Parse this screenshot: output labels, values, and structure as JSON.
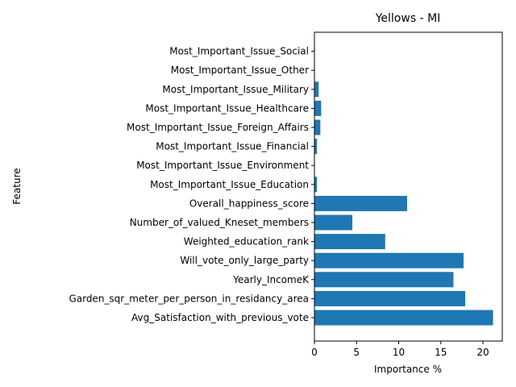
{
  "chart_data": {
    "type": "bar",
    "orientation": "horizontal",
    "title": "Yellows - MI",
    "xlabel": "Importance %",
    "ylabel": "Feature",
    "xlim": [
      0,
      22.3
    ],
    "xticks": [
      0,
      5,
      10,
      15,
      20
    ],
    "bar_color": "#1f77b4",
    "grid": false,
    "categories": [
      "Avg_Satisfaction_with_previous_vote",
      "Garden_sqr_meter_per_person_in_residancy_area",
      "Yearly_IncomeK",
      "Will_vote_only_large_party",
      "Weighted_education_rank",
      "Number_of_valued_Kneset_members",
      "Overall_happiness_score",
      "Most_Important_Issue_Education",
      "Most_Important_Issue_Environment",
      "Most_Important_Issue_Financial",
      "Most_Important_Issue_Foreign_Affairs",
      "Most_Important_Issue_Healthcare",
      "Most_Important_Issue_Military",
      "Most_Important_Issue_Other",
      "Most_Important_Issue_Social"
    ],
    "values": [
      21.2,
      17.9,
      16.5,
      17.7,
      8.4,
      4.5,
      11.0,
      0.3,
      0.05,
      0.3,
      0.7,
      0.8,
      0.5,
      0.05,
      0.05
    ]
  }
}
